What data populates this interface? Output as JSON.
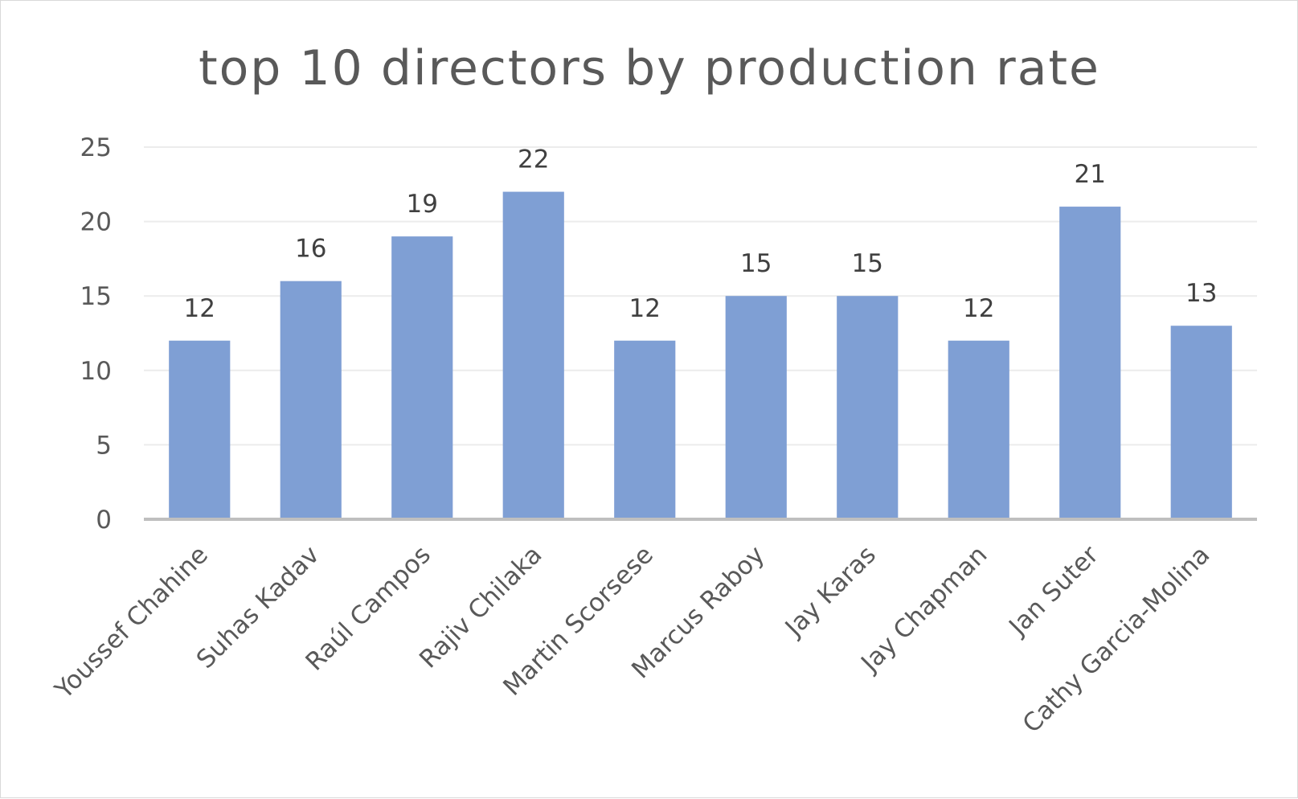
{
  "chart_data": {
    "type": "bar",
    "title": "top 10 directors by production rate",
    "xlabel": "",
    "ylabel": "",
    "categories": [
      "Youssef Chahine",
      "Suhas Kadav",
      "Raúl Campos",
      "Rajiv Chilaka",
      "Martin Scorsese",
      "Marcus Raboy",
      "Jay Karas",
      "Jay Chapman",
      "Jan Suter",
      "Cathy Garcia-Molina"
    ],
    "values": [
      12,
      16,
      19,
      22,
      12,
      15,
      15,
      12,
      21,
      13
    ],
    "ylim": [
      0,
      25
    ],
    "yticks": [
      0,
      5,
      10,
      15,
      20,
      25
    ],
    "grid": true,
    "legend": "none",
    "data_labels": true,
    "bar_color": "#7f9fd4"
  }
}
